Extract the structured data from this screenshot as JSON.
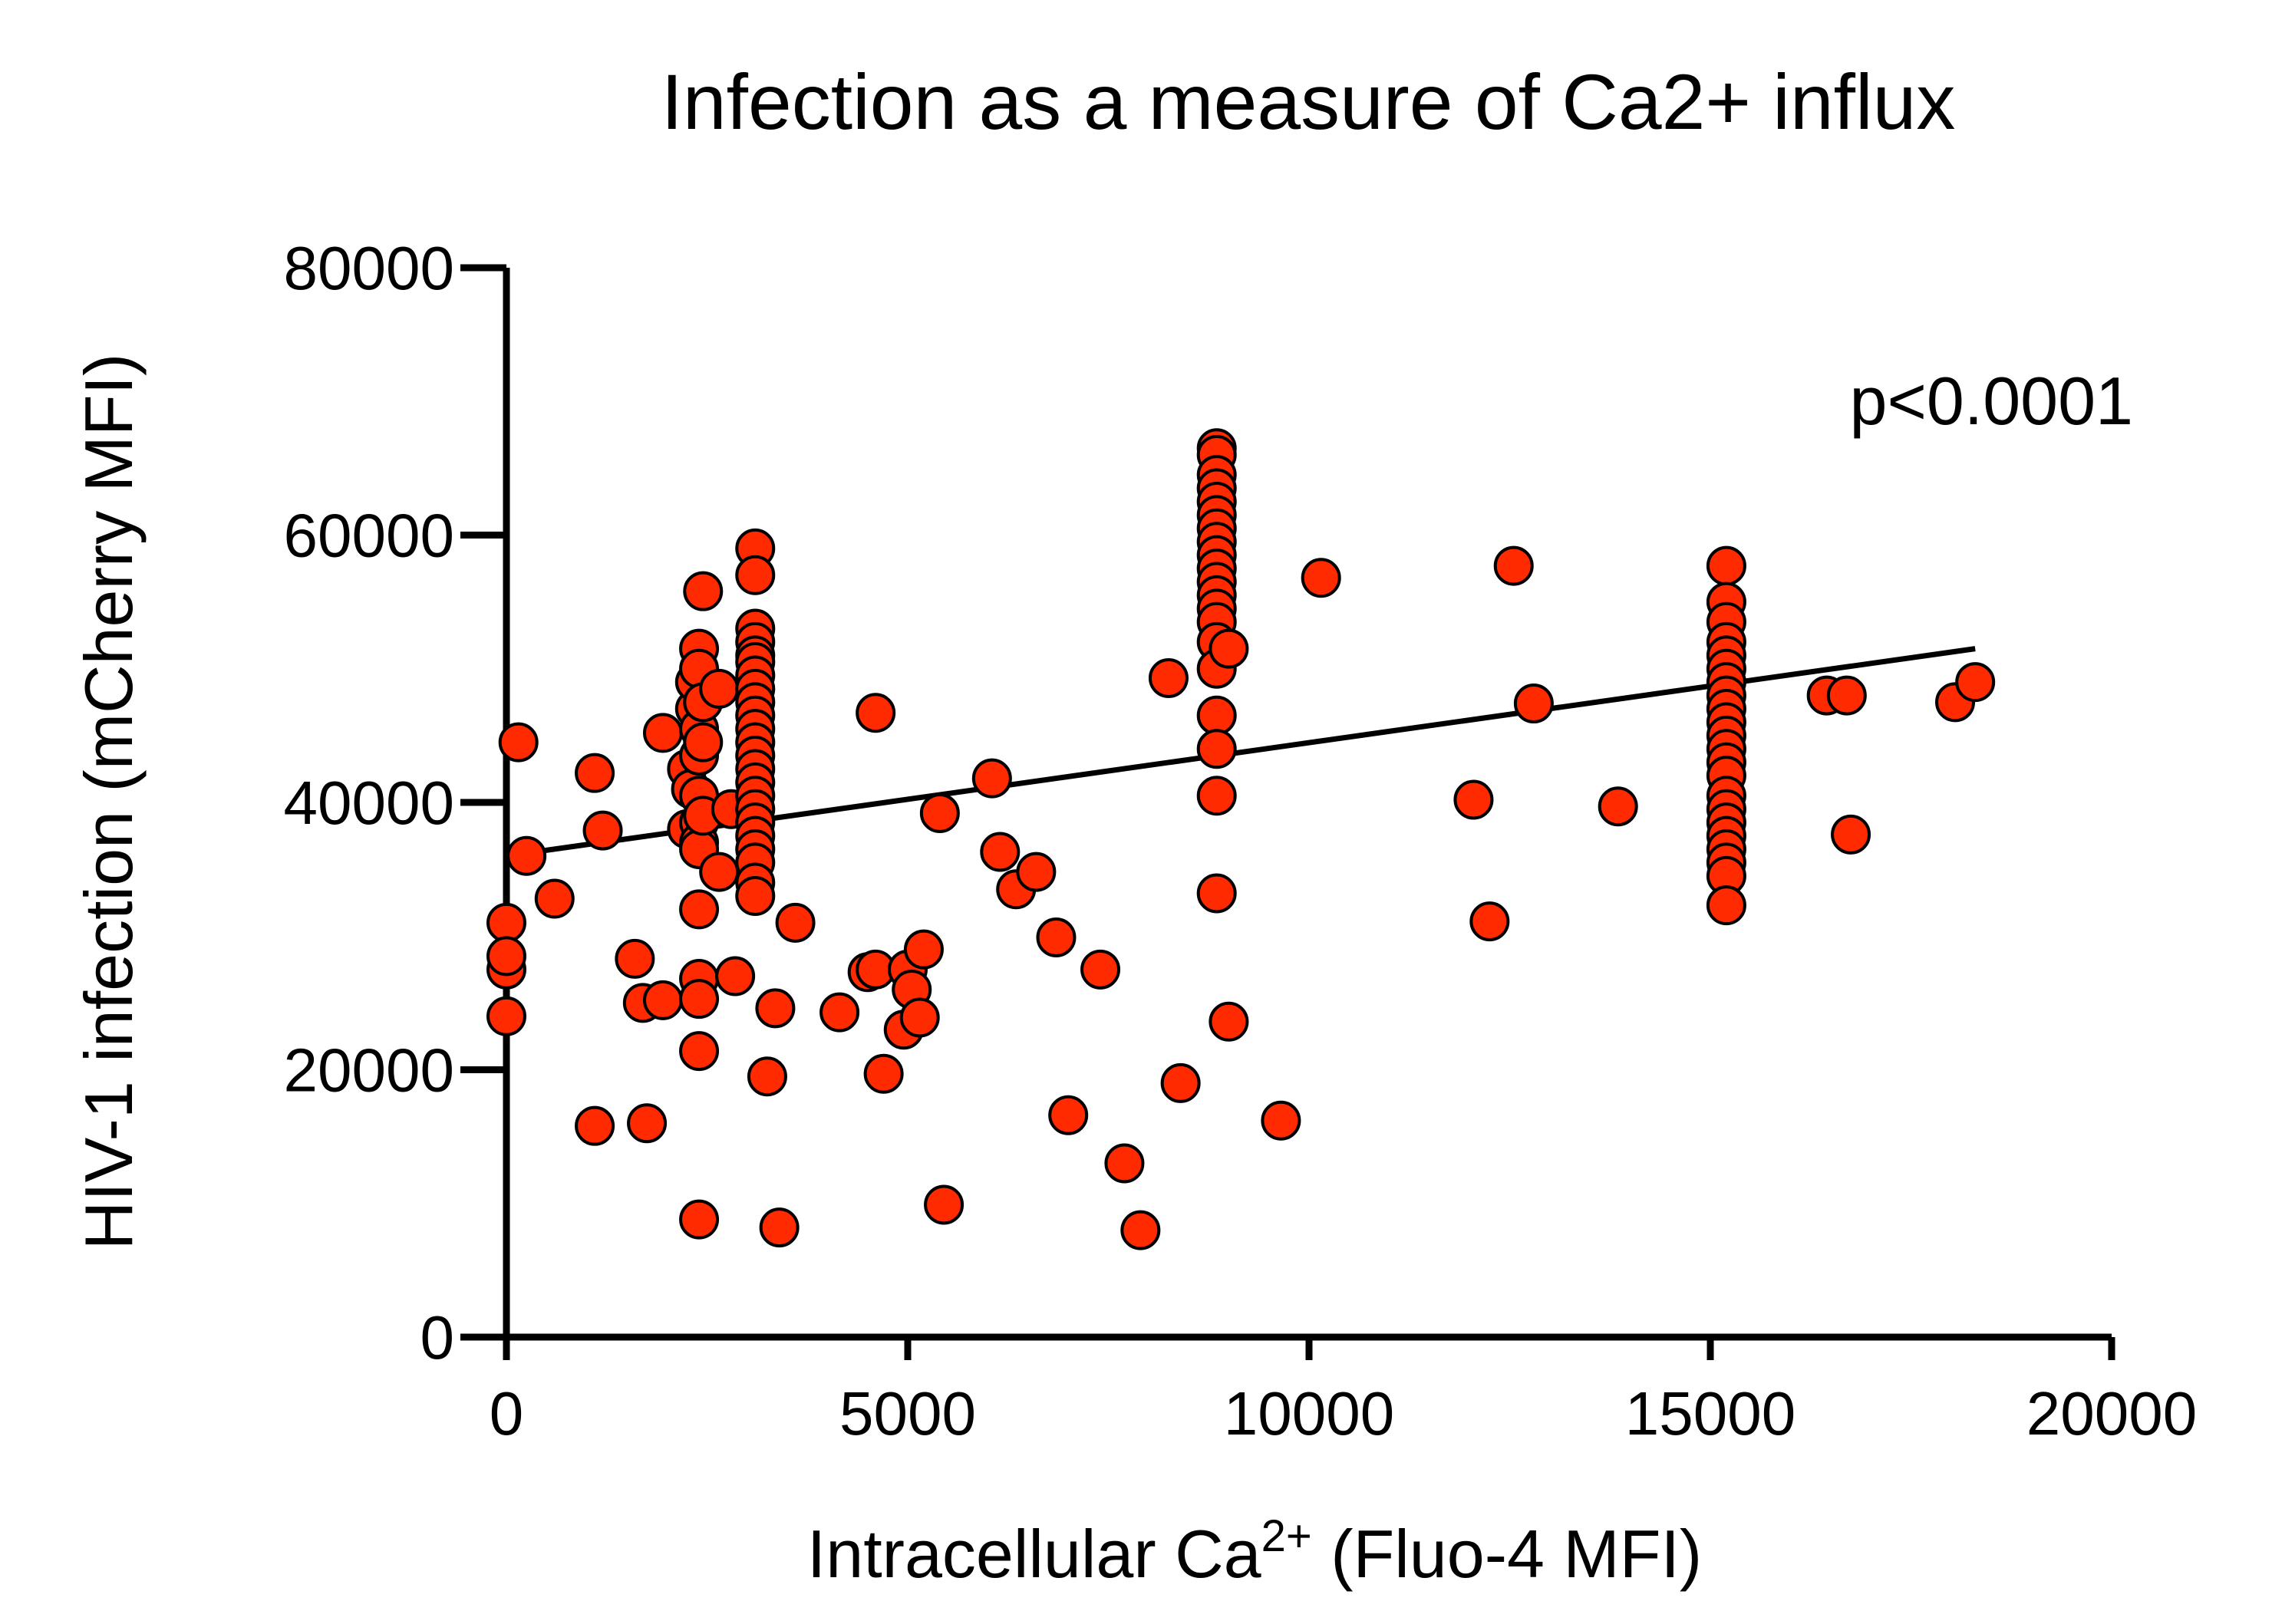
{
  "chart_data": {
    "type": "scatter",
    "title": "Infection as a measure of Ca2+ influx",
    "xlabel": {
      "main": "Intracellular Ca",
      "superscript": "2+",
      "suffix": " (Fluo-4 MFI)"
    },
    "ylabel": "HIV-1 infection (mCherry MFI)",
    "xlim": [
      0,
      20000
    ],
    "ylim": [
      0,
      80000
    ],
    "xticks": [
      0,
      5000,
      10000,
      15000,
      20000
    ],
    "yticks": [
      0,
      20000,
      40000,
      60000,
      80000
    ],
    "xtick_labels": [
      "0",
      "5000",
      "10000",
      "15000",
      "20000"
    ],
    "ytick_labels": [
      "0",
      "20000",
      "40000",
      "60000",
      "80000"
    ],
    "annotation": "p<0.0001",
    "point_color": "#ff2a00",
    "fit_line": {
      "x": [
        0,
        18300
      ],
      "y": [
        36000,
        51500
      ]
    },
    "series": [
      {
        "name": "cells",
        "points": [
          [
            0,
            31000
          ],
          [
            0,
            27500
          ],
          [
            0,
            28500
          ],
          [
            0,
            24000
          ],
          [
            150,
            44500
          ],
          [
            250,
            36000
          ],
          [
            600,
            32800
          ],
          [
            1100,
            42200
          ],
          [
            1200,
            37900
          ],
          [
            1100,
            15800
          ],
          [
            1600,
            28300
          ],
          [
            1700,
            25000
          ],
          [
            1750,
            16000
          ],
          [
            1950,
            25200
          ],
          [
            1950,
            45200
          ],
          [
            2250,
            42500
          ],
          [
            2250,
            38000
          ],
          [
            2300,
            41000
          ],
          [
            2350,
            47000
          ],
          [
            2350,
            49000
          ],
          [
            2400,
            51500
          ],
          [
            2400,
            50000
          ],
          [
            2400,
            45500
          ],
          [
            2400,
            43500
          ],
          [
            2400,
            40500
          ],
          [
            2400,
            38500
          ],
          [
            2400,
            37000
          ],
          [
            2400,
            36500
          ],
          [
            2400,
            32000
          ],
          [
            2400,
            26800
          ],
          [
            2400,
            25300
          ],
          [
            2400,
            21400
          ],
          [
            2400,
            8800
          ],
          [
            2450,
            55800
          ],
          [
            2450,
            47500
          ],
          [
            2450,
            44500
          ],
          [
            2450,
            39000
          ],
          [
            2650,
            34800
          ],
          [
            2650,
            48500
          ],
          [
            2800,
            39500
          ],
          [
            2850,
            27000
          ],
          [
            3100,
            59000
          ],
          [
            3100,
            57000
          ],
          [
            3100,
            53000
          ],
          [
            3100,
            52000
          ],
          [
            3100,
            51000
          ],
          [
            3100,
            50500
          ],
          [
            3100,
            49500
          ],
          [
            3100,
            48500
          ],
          [
            3100,
            47500
          ],
          [
            3100,
            46500
          ],
          [
            3100,
            45500
          ],
          [
            3100,
            44500
          ],
          [
            3100,
            43500
          ],
          [
            3100,
            42500
          ],
          [
            3100,
            41500
          ],
          [
            3100,
            40500
          ],
          [
            3100,
            39500
          ],
          [
            3100,
            38500
          ],
          [
            3100,
            37500
          ],
          [
            3100,
            36500
          ],
          [
            3100,
            35500
          ],
          [
            3100,
            34000
          ],
          [
            3100,
            33000
          ],
          [
            3250,
            19500
          ],
          [
            3350,
            24600
          ],
          [
            3400,
            8200
          ],
          [
            3600,
            31000
          ],
          [
            4150,
            24300
          ],
          [
            4500,
            27300
          ],
          [
            4600,
            46700
          ],
          [
            4600,
            27500
          ],
          [
            4700,
            19700
          ],
          [
            4950,
            23000
          ],
          [
            5000,
            27500
          ],
          [
            5050,
            26000
          ],
          [
            5150,
            23900
          ],
          [
            5200,
            29000
          ],
          [
            5400,
            39200
          ],
          [
            5450,
            9900
          ],
          [
            6050,
            41800
          ],
          [
            6150,
            36300
          ],
          [
            6350,
            33500
          ],
          [
            6600,
            34800
          ],
          [
            6850,
            29900
          ],
          [
            7000,
            16600
          ],
          [
            7400,
            27500
          ],
          [
            7700,
            13000
          ],
          [
            7900,
            8000
          ],
          [
            8250,
            49300
          ],
          [
            8400,
            19000
          ],
          [
            8850,
            66500
          ],
          [
            8850,
            66000
          ],
          [
            8850,
            64500
          ],
          [
            8850,
            63500
          ],
          [
            8850,
            62500
          ],
          [
            8850,
            61500
          ],
          [
            8850,
            60500
          ],
          [
            8850,
            59500
          ],
          [
            8850,
            58500
          ],
          [
            8850,
            57500
          ],
          [
            8850,
            56500
          ],
          [
            8850,
            55500
          ],
          [
            8850,
            54500
          ],
          [
            8850,
            53500
          ],
          [
            8850,
            52000
          ],
          [
            8850,
            50000
          ],
          [
            8850,
            46500
          ],
          [
            8850,
            44000
          ],
          [
            8850,
            40500
          ],
          [
            8850,
            33200
          ],
          [
            9000,
            51500
          ],
          [
            9000,
            23600
          ],
          [
            9650,
            16200
          ],
          [
            10150,
            56800
          ],
          [
            12050,
            40200
          ],
          [
            12250,
            31100
          ],
          [
            12550,
            57700
          ],
          [
            12800,
            47400
          ],
          [
            13850,
            39700
          ],
          [
            15200,
            57700
          ],
          [
            15200,
            55000
          ],
          [
            15200,
            53500
          ],
          [
            15200,
            52000
          ],
          [
            15200,
            51000
          ],
          [
            15200,
            50000
          ],
          [
            15200,
            49000
          ],
          [
            15200,
            48000
          ],
          [
            15200,
            47000
          ],
          [
            15200,
            46000
          ],
          [
            15200,
            45000
          ],
          [
            15200,
            44000
          ],
          [
            15200,
            43000
          ],
          [
            15200,
            42000
          ],
          [
            15200,
            40500
          ],
          [
            15200,
            39500
          ],
          [
            15200,
            38500
          ],
          [
            15200,
            37500
          ],
          [
            15200,
            36500
          ],
          [
            15200,
            35500
          ],
          [
            15200,
            34500
          ],
          [
            15200,
            32300
          ],
          [
            16450,
            48000
          ],
          [
            16700,
            48000
          ],
          [
            16750,
            37600
          ],
          [
            18050,
            47500
          ],
          [
            18300,
            49000
          ]
        ]
      }
    ]
  }
}
